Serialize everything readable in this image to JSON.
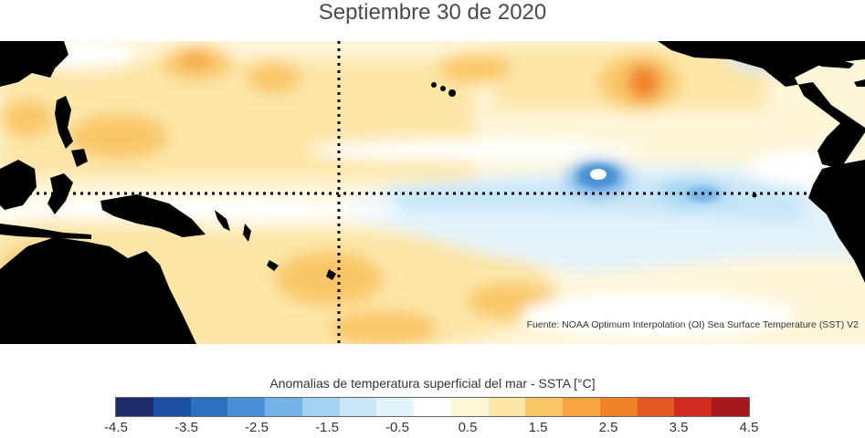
{
  "title": "Septiembre 30 de 2020",
  "source_note": "Fuente: NOAA Optimum Interpolation (OI) Sea Surface Temperature (SST) V2",
  "colorbar": {
    "title": "Anomalias de temperatura superficial del mar - SSTA  [°C]",
    "min": -4.5,
    "max": 4.5,
    "tick_labels": [
      "-4.5",
      "-3.5",
      "-2.5",
      "-1.5",
      "-0.5",
      "0.5",
      "1.5",
      "2.5",
      "3.5",
      "4.5"
    ],
    "colors": [
      "#1f2d6b",
      "#1b4fa0",
      "#2b6fc0",
      "#4a90d6",
      "#75b3e6",
      "#a3d3f2",
      "#c8e6f8",
      "#e3f3fb",
      "#ffffff",
      "#fff5d9",
      "#fce6a8",
      "#f9c767",
      "#f5a440",
      "#f08228",
      "#e35924",
      "#d12a1e",
      "#a8191c"
    ]
  },
  "map": {
    "land_color": "#000000",
    "reference_lines": "dotted equator and dateline"
  }
}
